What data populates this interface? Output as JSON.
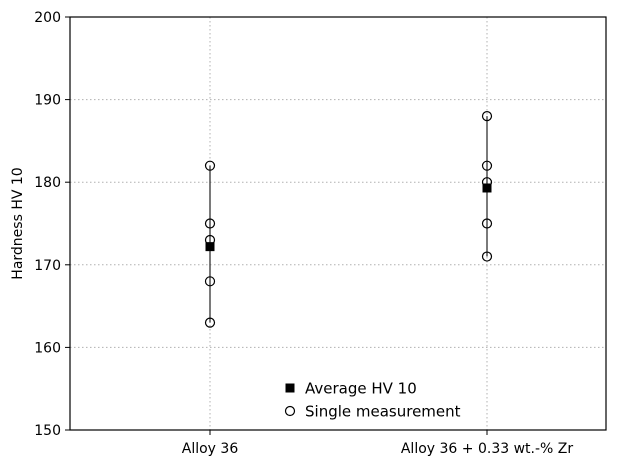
{
  "chart_data": {
    "type": "scatter",
    "title": "",
    "xlabel": "",
    "ylabel": "Hardness HV 10",
    "ylim": [
      150,
      200
    ],
    "yticks": [
      150,
      160,
      170,
      180,
      190,
      200
    ],
    "grid": true,
    "grid_style": "dotted",
    "legend_position": "bottom-center",
    "categories": [
      "Alloy 36",
      "Alloy 36 + 0.33 wt.-% Zr"
    ],
    "series": [
      {
        "name": "Average HV 10",
        "marker": "filled-square",
        "values": [
          172.2,
          179.3
        ]
      },
      {
        "name": "Single measurement",
        "marker": "open-circle",
        "values": [
          [
            182,
            175,
            173,
            168,
            163
          ],
          [
            188,
            182,
            180,
            175,
            171
          ]
        ]
      }
    ],
    "colors": {
      "marker": "#000000",
      "range_line": "#333333",
      "grid": "#b0b0b0"
    }
  }
}
